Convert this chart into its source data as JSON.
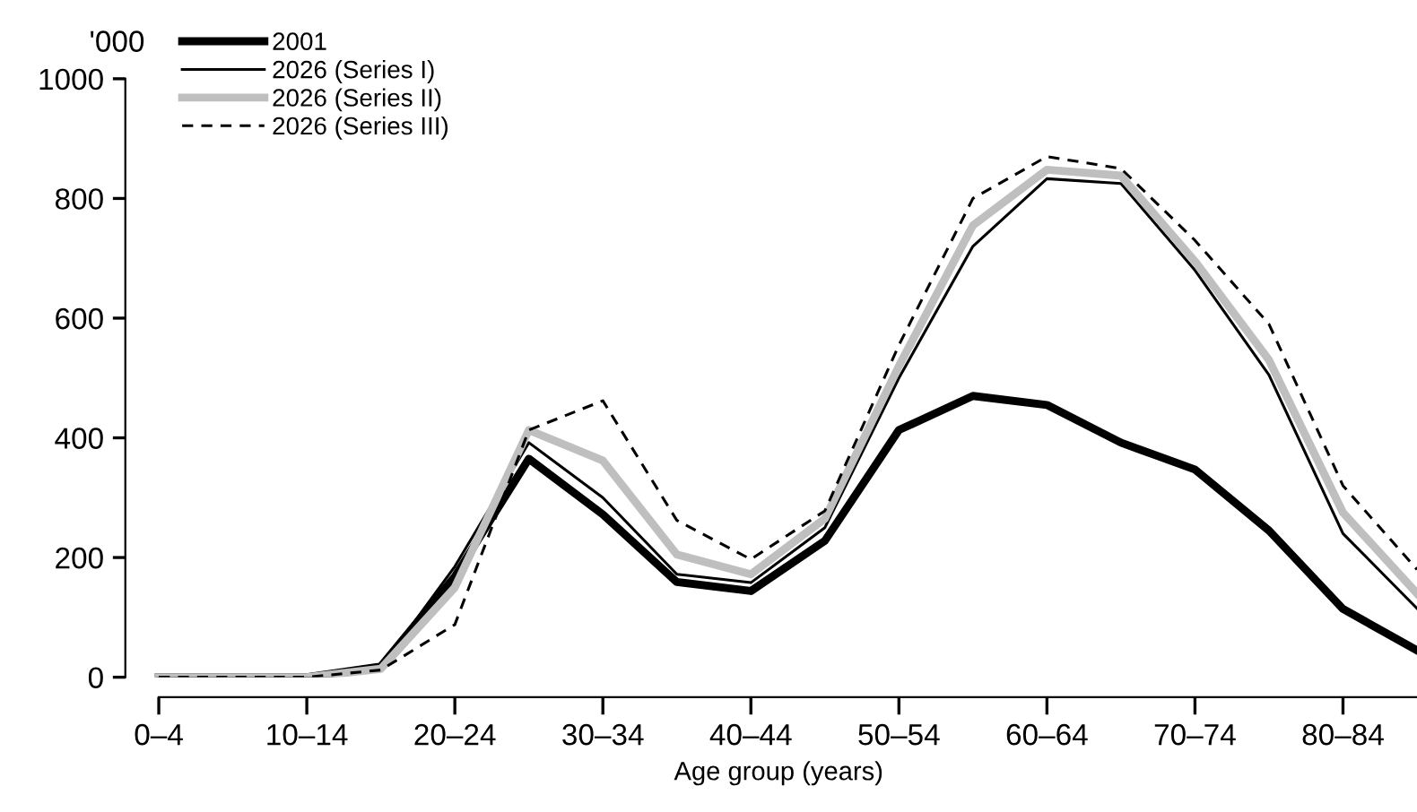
{
  "chart_data": {
    "type": "line",
    "ylabel": "'000",
    "xlabel": "Age group (years)",
    "categories": [
      "0–4",
      null,
      "10–14",
      null,
      "20–24",
      null,
      "30–34",
      null,
      "40–44",
      null,
      "50–54",
      null,
      "60–64",
      null,
      "70–74",
      null,
      "80–84",
      null
    ],
    "ylim": [
      0,
      1000
    ],
    "yticks": [
      0,
      200,
      400,
      600,
      800,
      1000
    ],
    "grid": false,
    "legend": "top left",
    "marker": "none",
    "series": [
      {
        "name": "2001",
        "color": "#000000",
        "line_style": "solid",
        "values": [
          0,
          0,
          0,
          18,
          168,
          365,
          272,
          159,
          144,
          228,
          413,
          470,
          455,
          392,
          347,
          245,
          114,
          45
        ]
      },
      {
        "name": "2026 (Series I)",
        "color": "#000000",
        "line_style": "solid",
        "values": [
          0,
          0,
          0,
          16,
          185,
          392,
          300,
          172,
          158,
          250,
          500,
          720,
          833,
          825,
          680,
          505,
          240,
          115
        ]
      },
      {
        "name": "2026 (Series II)",
        "color": "#bfbfbf",
        "line_style": "solid",
        "values": [
          0,
          0,
          0,
          14,
          150,
          413,
          362,
          205,
          172,
          265,
          520,
          755,
          848,
          838,
          695,
          530,
          275,
          140
        ]
      },
      {
        "name": "2026 (Series III)",
        "color": "#000000",
        "line_style": "dashed",
        "values": [
          0,
          0,
          0,
          12,
          88,
          413,
          462,
          262,
          197,
          278,
          555,
          800,
          870,
          850,
          730,
          590,
          320,
          180
        ]
      }
    ]
  }
}
